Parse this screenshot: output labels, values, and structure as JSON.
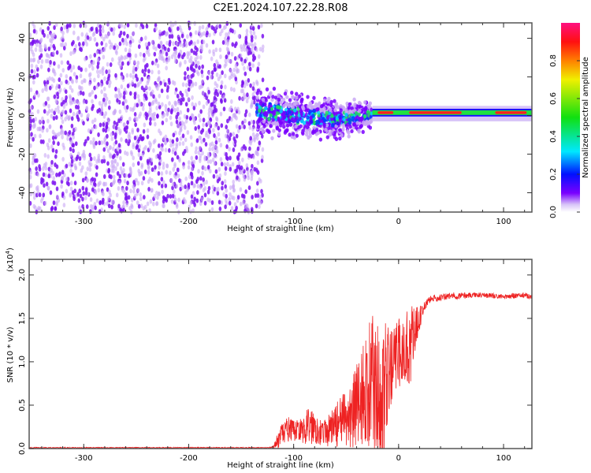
{
  "title": "C2E1.2024.107.22.28.R08",
  "chart_data": [
    {
      "type": "heatmap",
      "title": "",
      "xlabel": "Height of straight line (km)",
      "ylabel": "Frequency (Hz)",
      "xlim": [
        -352,
        127
      ],
      "ylim": [
        -50,
        48
      ],
      "xticks": [
        -300,
        -200,
        -100,
        0,
        100
      ],
      "yticks": [
        -40,
        -20,
        0,
        20,
        40
      ],
      "colorbar": {
        "label": "Normalized spectral amplitude",
        "range": [
          0,
          1
        ],
        "ticks": [
          "0.0",
          "0.2",
          "0.4",
          "0.6",
          "0.8"
        ]
      },
      "regions": [
        {
          "name": "noise",
          "x_range": [
            -352,
            -135
          ],
          "freq_range": [
            -50,
            48
          ],
          "amplitude": 0.08
        },
        {
          "name": "transition",
          "x_range": [
            -135,
            -25
          ],
          "center_freq": [
            3,
            0,
            -2,
            0
          ],
          "spread_hz": [
            10,
            10,
            8,
            5
          ],
          "amplitude": 0.35
        },
        {
          "name": "carrier",
          "x_range": [
            -25,
            127
          ],
          "center_freq": 1.5,
          "spread_hz": 2,
          "amplitude": 0.9
        }
      ]
    },
    {
      "type": "line",
      "title": "",
      "xlabel": "Height of straight line (km)",
      "ylabel": "SNR (10 * v/v)",
      "yscale_label": "(x10",
      "yscale_exp": "4",
      "yscale_close": ")",
      "xlim": [
        -352,
        127
      ],
      "ylim": [
        0,
        2.18
      ],
      "xticks": [
        -300,
        -200,
        -100,
        0,
        100
      ],
      "yticks": [
        "0.0",
        "0.5",
        "1.0",
        "1.5",
        "2.0"
      ],
      "color": "#ee2222",
      "x": [
        -350,
        -300,
        -250,
        -200,
        -150,
        -125,
        -120,
        -115,
        -110,
        -105,
        -100,
        -95,
        -90,
        -85,
        -80,
        -75,
        -70,
        -65,
        -60,
        -55,
        -50,
        -45,
        -40,
        -35,
        -30,
        -25,
        -20,
        -15,
        -10,
        -5,
        0,
        5,
        10,
        15,
        20,
        25,
        30,
        40,
        50,
        60,
        70,
        80,
        90,
        100,
        110,
        120,
        127
      ],
      "values": [
        0.01,
        0.01,
        0.01,
        0.01,
        0.01,
        0.01,
        0.02,
        0.08,
        0.18,
        0.22,
        0.2,
        0.22,
        0.2,
        0.28,
        0.25,
        0.2,
        0.18,
        0.22,
        0.27,
        0.3,
        0.33,
        0.4,
        0.5,
        0.6,
        0.7,
        0.75,
        0.7,
        0.6,
        0.8,
        1.0,
        1.1,
        1.12,
        1.2,
        1.3,
        1.5,
        1.65,
        1.72,
        1.74,
        1.76,
        1.76,
        1.77,
        1.77,
        1.76,
        1.75,
        1.76,
        1.77,
        1.74
      ],
      "noise_amplitude": [
        0.005,
        0.005,
        0.005,
        0.005,
        0.005,
        0.005,
        0.01,
        0.1,
        0.15,
        0.15,
        0.12,
        0.12,
        0.15,
        0.25,
        0.2,
        0.15,
        0.15,
        0.2,
        0.25,
        0.3,
        0.35,
        0.45,
        0.5,
        0.6,
        0.7,
        0.8,
        0.8,
        0.9,
        0.6,
        0.4,
        0.4,
        0.4,
        0.5,
        0.35,
        0.15,
        0.06,
        0.04,
        0.04,
        0.04,
        0.04,
        0.03,
        0.03,
        0.03,
        0.03,
        0.03,
        0.03,
        0.03
      ]
    }
  ]
}
